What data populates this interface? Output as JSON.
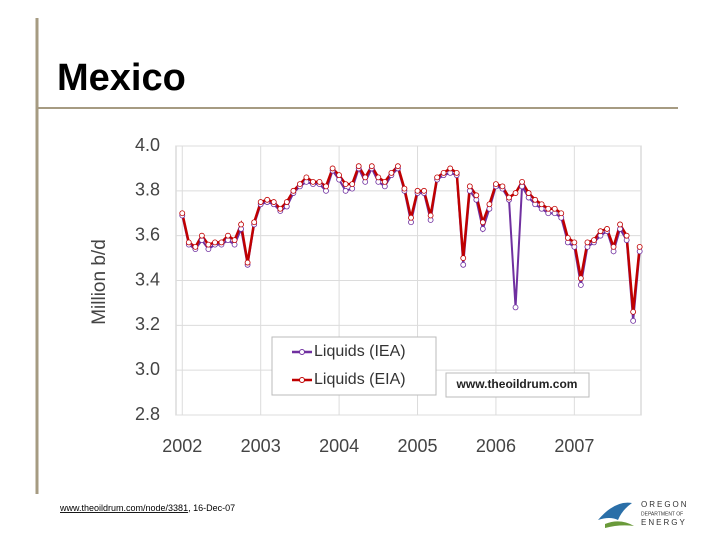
{
  "slide": {
    "title": "Mexico",
    "footer_link": "www.theoildrum.com/node/3381",
    "footer_date": ", 16-Dec-07",
    "logo": [
      "OREGON",
      "DEPARTMENT OF",
      "ENERGY"
    ]
  },
  "chart_data": {
    "type": "line",
    "ylabel": "Million b/d",
    "watermark": "www.theoildrum.com",
    "grid": true,
    "xlim": [
      2001.92,
      2007.85
    ],
    "xticks": [
      2002,
      2003,
      2004,
      2005,
      2006,
      2007
    ],
    "ylim": [
      2.8,
      4.0
    ],
    "yticks": [
      {
        "value": 2.8,
        "label": "2.8"
      },
      {
        "value": 3.0,
        "label": "3.0"
      },
      {
        "value": 3.2,
        "label": "3.2"
      },
      {
        "value": 3.4,
        "label": "3.4"
      },
      {
        "value": 3.6,
        "label": "3.6"
      },
      {
        "value": 3.8,
        "label": "3.8"
      },
      {
        "value": 4.0,
        "label": "4.0"
      }
    ],
    "x": [
      2002.0,
      2002.083,
      2002.167,
      2002.25,
      2002.333,
      2002.417,
      2002.5,
      2002.583,
      2002.667,
      2002.75,
      2002.833,
      2002.917,
      2003.0,
      2003.083,
      2003.167,
      2003.25,
      2003.333,
      2003.417,
      2003.5,
      2003.583,
      2003.667,
      2003.75,
      2003.833,
      2003.917,
      2004.0,
      2004.083,
      2004.167,
      2004.25,
      2004.333,
      2004.417,
      2004.5,
      2004.583,
      2004.667,
      2004.75,
      2004.833,
      2004.917,
      2005.0,
      2005.083,
      2005.167,
      2005.25,
      2005.333,
      2005.417,
      2005.5,
      2005.583,
      2005.667,
      2005.75,
      2005.833,
      2005.917,
      2006.0,
      2006.083,
      2006.167,
      2006.25,
      2006.333,
      2006.417,
      2006.5,
      2006.583,
      2006.667,
      2006.75,
      2006.833,
      2006.917,
      2007.0,
      2007.083,
      2007.167,
      2007.25,
      2007.333,
      2007.417,
      2007.5,
      2007.583,
      2007.667,
      2007.75,
      2007.833
    ],
    "series": [
      {
        "name": "Liquids (IEA)",
        "color": "#7030a0",
        "values": [
          3.69,
          3.56,
          3.54,
          3.58,
          3.54,
          3.56,
          3.56,
          3.58,
          3.56,
          3.63,
          3.47,
          3.65,
          3.74,
          3.75,
          3.74,
          3.71,
          3.73,
          3.79,
          3.82,
          3.84,
          3.83,
          3.83,
          3.8,
          3.89,
          3.85,
          3.8,
          3.81,
          3.9,
          3.84,
          3.9,
          3.84,
          3.82,
          3.87,
          3.9,
          3.8,
          3.66,
          3.79,
          3.79,
          3.67,
          3.85,
          3.87,
          3.88,
          3.87,
          3.47,
          3.8,
          3.76,
          3.63,
          3.72,
          3.82,
          3.81,
          3.76,
          3.28,
          3.82,
          3.77,
          3.74,
          3.72,
          3.7,
          3.7,
          3.68,
          3.57,
          3.55,
          3.38,
          3.55,
          3.57,
          3.6,
          3.62,
          3.53,
          3.63,
          3.58,
          3.22,
          3.53
        ]
      },
      {
        "name": "Liquids (EIA)",
        "color": "#c00000",
        "values": [
          3.7,
          3.57,
          3.55,
          3.6,
          3.56,
          3.57,
          3.57,
          3.6,
          3.58,
          3.65,
          3.48,
          3.66,
          3.75,
          3.76,
          3.75,
          3.72,
          3.75,
          3.8,
          3.83,
          3.86,
          3.84,
          3.84,
          3.82,
          3.9,
          3.87,
          3.83,
          3.83,
          3.91,
          3.86,
          3.91,
          3.86,
          3.84,
          3.88,
          3.91,
          3.81,
          3.68,
          3.8,
          3.8,
          3.69,
          3.86,
          3.88,
          3.9,
          3.88,
          3.5,
          3.82,
          3.78,
          3.66,
          3.74,
          3.83,
          3.82,
          3.77,
          3.79,
          3.84,
          3.79,
          3.76,
          3.74,
          3.72,
          3.72,
          3.7,
          3.59,
          3.57,
          3.41,
          3.57,
          3.58,
          3.62,
          3.63,
          3.55,
          3.65,
          3.6,
          3.26,
          3.55
        ]
      }
    ]
  }
}
